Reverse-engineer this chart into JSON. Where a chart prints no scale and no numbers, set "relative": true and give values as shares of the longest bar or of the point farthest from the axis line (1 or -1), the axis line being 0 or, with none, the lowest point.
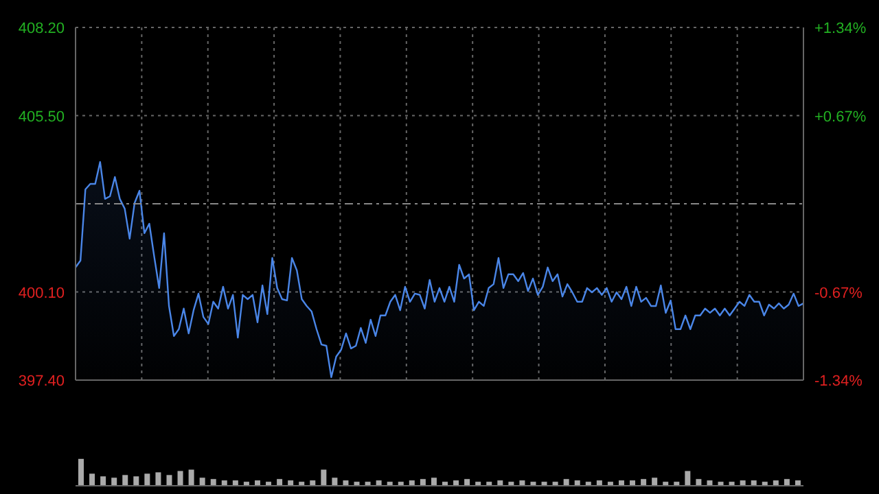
{
  "chart_data": [
    {
      "type": "area",
      "categories": [
        null,
        null,
        null,
        null,
        null,
        null,
        null,
        null,
        null,
        null,
        null,
        null,
        null,
        null,
        null,
        null,
        null,
        null,
        null,
        null,
        null,
        null,
        null,
        null,
        null,
        null,
        null,
        null,
        null,
        null,
        null,
        null,
        null,
        null,
        null,
        null,
        null,
        null,
        null,
        null,
        null,
        null,
        null,
        null,
        null,
        null,
        null,
        null,
        null,
        null,
        null,
        null,
        null,
        null,
        null,
        null,
        null,
        null,
        null,
        null,
        null,
        null,
        null,
        null,
        null,
        null,
        null,
        null,
        null,
        null,
        null,
        null,
        null,
        null,
        null,
        null,
        null,
        null,
        null,
        null,
        null,
        null,
        null,
        null,
        null,
        null,
        null,
        null,
        null,
        null,
        null,
        null,
        null,
        null,
        null,
        null,
        null,
        null,
        null,
        null,
        null,
        null,
        null,
        null,
        null,
        null,
        null,
        null,
        null,
        null,
        null,
        null,
        null,
        null,
        null,
        null,
        null,
        null,
        null,
        null,
        null,
        null,
        null,
        null,
        null,
        null,
        null,
        null,
        null,
        null,
        null,
        null,
        null,
        null,
        null,
        null,
        null,
        null,
        null,
        null,
        null,
        null,
        null,
        null,
        null,
        null,
        null,
        null,
        null
      ],
      "series": [
        {
          "color": "#4a86e8",
          "values": [
            400.85,
            401.06,
            403.24,
            403.41,
            403.41,
            404.08,
            402.95,
            403.03,
            403.62,
            402.95,
            402.65,
            401.73,
            402.82,
            403.2,
            401.9,
            402.19,
            401.18,
            400.22,
            401.9,
            399.67,
            398.75,
            398.96,
            399.59,
            398.83,
            399.54,
            400.05,
            399.33,
            399.12,
            399.8,
            399.59,
            400.26,
            399.59,
            400.01,
            398.7,
            400.01,
            399.88,
            400.01,
            399.17,
            400.3,
            399.42,
            401.14,
            400.22,
            399.88,
            399.84,
            401.14,
            400.76,
            399.88,
            399.67,
            399.5,
            398.96,
            398.49,
            398.45,
            397.49,
            398.12,
            398.33,
            398.83,
            398.37,
            398.45,
            399.0,
            398.54,
            399.25,
            398.75,
            399.38,
            399.38,
            399.8,
            400.01,
            399.54,
            400.26,
            399.8,
            400.05,
            400.01,
            399.59,
            400.47,
            399.8,
            400.22,
            399.8,
            400.26,
            399.8,
            400.93,
            400.51,
            400.64,
            399.54,
            399.8,
            399.67,
            400.22,
            400.34,
            401.14,
            400.22,
            400.64,
            400.64,
            400.43,
            400.68,
            400.13,
            400.51,
            400.01,
            400.26,
            400.85,
            400.43,
            400.64,
            399.96,
            400.34,
            400.09,
            399.8,
            399.8,
            400.22,
            400.09,
            400.22,
            400.01,
            400.22,
            399.8,
            400.09,
            399.88,
            400.26,
            399.67,
            400.26,
            399.8,
            399.92,
            399.67,
            399.67,
            400.3,
            399.46,
            399.84,
            398.96,
            398.96,
            399.38,
            398.96,
            399.38,
            399.38,
            399.59,
            399.46,
            399.59,
            399.38,
            399.59,
            399.38,
            399.59,
            399.8,
            399.67,
            400.01,
            399.8,
            399.8,
            399.38,
            399.71,
            399.59,
            399.75,
            399.59,
            399.71,
            400.05,
            399.67,
            399.75
          ]
        }
      ],
      "ylim": [
        397.4,
        408.2
      ],
      "yticks": [
        {
          "value": 397.4,
          "label": "397.40"
        },
        {
          "value": 400.1,
          "label": "400.10"
        },
        {
          "value": 405.5,
          "label": "405.50"
        },
        {
          "value": 408.2,
          "label": "408.20"
        }
      ],
      "y2lim": [
        -1.34,
        1.34
      ],
      "y2ticks": [
        {
          "value": -1.34,
          "label": "-1.34%"
        },
        {
          "value": -0.67,
          "label": "-0.67%"
        },
        {
          "value": 0.67,
          "label": "+0.67%"
        },
        {
          "value": 1.34,
          "label": "+1.34%"
        }
      ],
      "ref_lines": [
        {
          "axis": "y",
          "value": 402.8,
          "line_style": "dashed",
          "color": "#888888"
        }
      ],
      "grid": true
    },
    {
      "type": "bar",
      "relative": true,
      "color": "#aaaaaa",
      "categories": [
        null,
        null,
        null,
        null,
        null,
        null,
        null,
        null,
        null,
        null,
        null,
        null,
        null,
        null,
        null,
        null,
        null,
        null,
        null,
        null,
        null,
        null,
        null,
        null,
        null,
        null,
        null,
        null,
        null,
        null,
        null,
        null,
        null,
        null,
        null,
        null,
        null,
        null,
        null,
        null,
        null,
        null,
        null,
        null,
        null,
        null,
        null,
        null,
        null,
        null,
        null,
        null,
        null,
        null,
        null,
        null,
        null,
        null,
        null,
        null,
        null,
        null,
        null,
        null,
        null,
        null
      ],
      "values": [
        1.0,
        0.45,
        0.35,
        0.3,
        0.4,
        0.35,
        0.45,
        0.5,
        0.4,
        0.55,
        0.6,
        0.3,
        0.25,
        0.2,
        0.2,
        0.15,
        0.2,
        0.15,
        0.25,
        0.2,
        0.15,
        0.2,
        0.6,
        0.3,
        0.2,
        0.15,
        0.15,
        0.2,
        0.15,
        0.15,
        0.2,
        0.25,
        0.3,
        0.15,
        0.2,
        0.25,
        0.15,
        0.15,
        0.2,
        0.15,
        0.2,
        0.15,
        0.15,
        0.15,
        0.25,
        0.2,
        0.15,
        0.2,
        0.15,
        0.2,
        0.2,
        0.25,
        0.3,
        0.15,
        0.15,
        0.55,
        0.25,
        0.2,
        0.15,
        0.15,
        0.2,
        0.2,
        0.15,
        0.2,
        0.25,
        0.2
      ]
    }
  ]
}
